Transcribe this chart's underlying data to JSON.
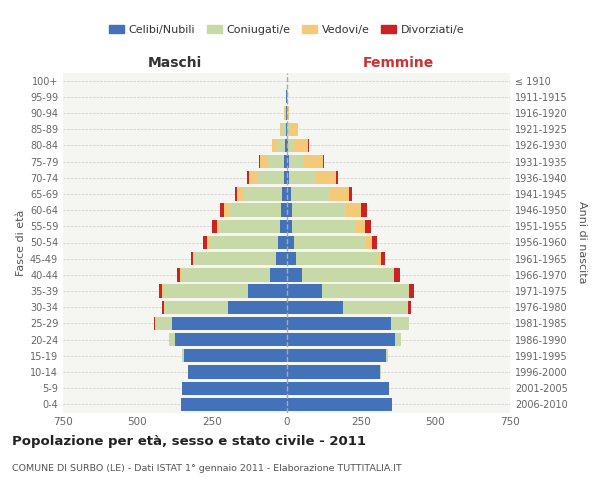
{
  "age_groups": [
    "0-4",
    "5-9",
    "10-14",
    "15-19",
    "20-24",
    "25-29",
    "30-34",
    "35-39",
    "40-44",
    "45-49",
    "50-54",
    "55-59",
    "60-64",
    "65-69",
    "70-74",
    "75-79",
    "80-84",
    "85-89",
    "90-94",
    "95-99",
    "100+"
  ],
  "birth_years": [
    "2006-2010",
    "2001-2005",
    "1996-2000",
    "1991-1995",
    "1986-1990",
    "1981-1985",
    "1976-1980",
    "1971-1975",
    "1966-1970",
    "1961-1965",
    "1956-1960",
    "1951-1955",
    "1946-1950",
    "1941-1945",
    "1936-1940",
    "1931-1935",
    "1926-1930",
    "1921-1925",
    "1916-1920",
    "1911-1915",
    "≤ 1910"
  ],
  "male_celibe": [
    355,
    350,
    330,
    345,
    375,
    385,
    195,
    130,
    55,
    35,
    28,
    23,
    20,
    15,
    10,
    7,
    4,
    3,
    2,
    1,
    0
  ],
  "male_coniugati": [
    0,
    0,
    2,
    4,
    18,
    55,
    215,
    285,
    300,
    275,
    232,
    200,
    173,
    128,
    88,
    58,
    28,
    12,
    4,
    1,
    0
  ],
  "male_vedovi": [
    0,
    0,
    0,
    0,
    0,
    0,
    1,
    2,
    2,
    4,
    7,
    10,
    17,
    23,
    28,
    23,
    16,
    7,
    2,
    0,
    0
  ],
  "male_divorziati": [
    0,
    0,
    0,
    0,
    1,
    3,
    8,
    12,
    12,
    8,
    12,
    18,
    14,
    8,
    5,
    3,
    2,
    0,
    0,
    0,
    0
  ],
  "female_celibe": [
    355,
    345,
    315,
    335,
    365,
    350,
    188,
    120,
    53,
    33,
    26,
    20,
    18,
    14,
    9,
    7,
    4,
    3,
    2,
    1,
    0
  ],
  "female_coniugati": [
    0,
    0,
    2,
    4,
    18,
    60,
    220,
    290,
    305,
    275,
    240,
    210,
    181,
    132,
    86,
    53,
    20,
    10,
    3,
    1,
    0
  ],
  "female_vedovi": [
    0,
    0,
    0,
    0,
    0,
    0,
    1,
    2,
    4,
    9,
    20,
    33,
    52,
    63,
    72,
    62,
    48,
    24,
    5,
    2,
    1
  ],
  "female_divorziati": [
    0,
    0,
    0,
    0,
    1,
    2,
    8,
    15,
    20,
    15,
    18,
    22,
    18,
    12,
    6,
    3,
    2,
    0,
    0,
    0,
    0
  ],
  "color_celibe": "#4472b8",
  "color_coniugati": "#c8d9a8",
  "color_vedovi": "#f5c97a",
  "color_divorziati": "#cc2222",
  "title": "Popolazione per età, sesso e stato civile - 2011",
  "subtitle": "COMUNE DI SURBO (LE) - Dati ISTAT 1° gennaio 2011 - Elaborazione TUTTITALIA.IT",
  "label_maschi": "Maschi",
  "label_femmine": "Femmine",
  "ylabel_left": "Fasce di età",
  "ylabel_right": "Anni di nascita",
  "legend_labels": [
    "Celibi/Nubili",
    "Coniugati/e",
    "Vedovi/e",
    "Divorziati/e"
  ],
  "xlim": 750,
  "background_color": "#ffffff",
  "plot_bg_color": "#f5f5f2",
  "grid_color": "#cccccc"
}
